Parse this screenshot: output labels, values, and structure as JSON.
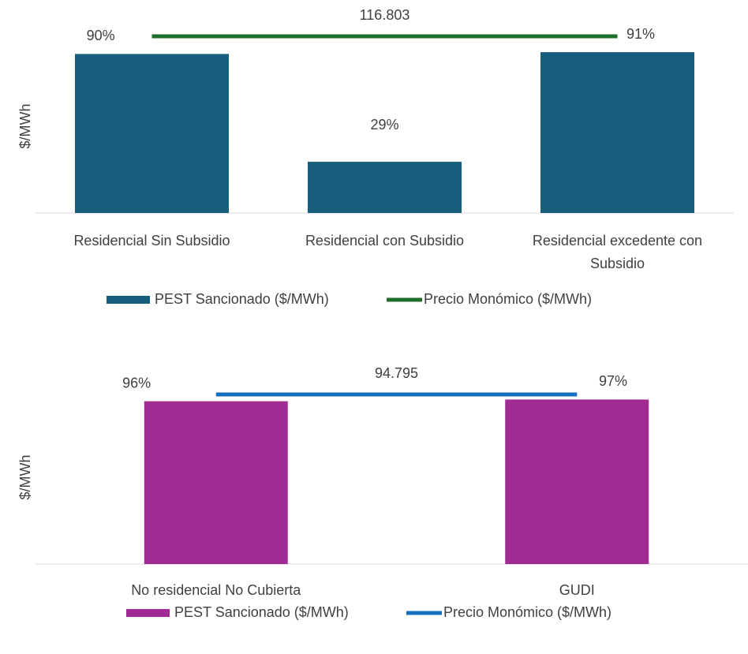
{
  "chart_data": [
    {
      "type": "bar",
      "y_label": "$/MWh",
      "categories": [
        "Residencial Sin Subsidio",
        "Residencial con Subsidio",
        "Residencial excedente con Subsidio"
      ],
      "series": [
        {
          "name": "PEST Sancionado ($/MWh)",
          "color": "#175e7e",
          "values": [
            90,
            29,
            91
          ],
          "value_labels": [
            "90%",
            "29%",
            "91%"
          ]
        },
        {
          "name": "Precio Monómico ($/MWh)",
          "color": "#1f6e2a",
          "type": "line",
          "axis": "y2",
          "values": [
            116.803,
            116.803,
            116.803
          ]
        }
      ],
      "ylim": [
        0,
        110
      ],
      "y2lim": [
        0,
        128.5
      ]
    },
    {
      "type": "bar",
      "y_label": "$/MWh",
      "categories": [
        "No residencial No Cubierta",
        "GUDI"
      ],
      "series": [
        {
          "name": "PEST Sancionado ($/MWh)",
          "color": "#a02b93",
          "values": [
            96,
            97
          ],
          "value_labels": [
            "96%",
            "97%"
          ]
        },
        {
          "name": "Precio Monómico ($/MWh)",
          "color": "#1570c0",
          "type": "line",
          "axis": "y2",
          "values": [
            94.795,
            94.795
          ]
        }
      ],
      "ylim": [
        0,
        110
      ],
      "y2lim": [
        0,
        104.3
      ]
    }
  ]
}
